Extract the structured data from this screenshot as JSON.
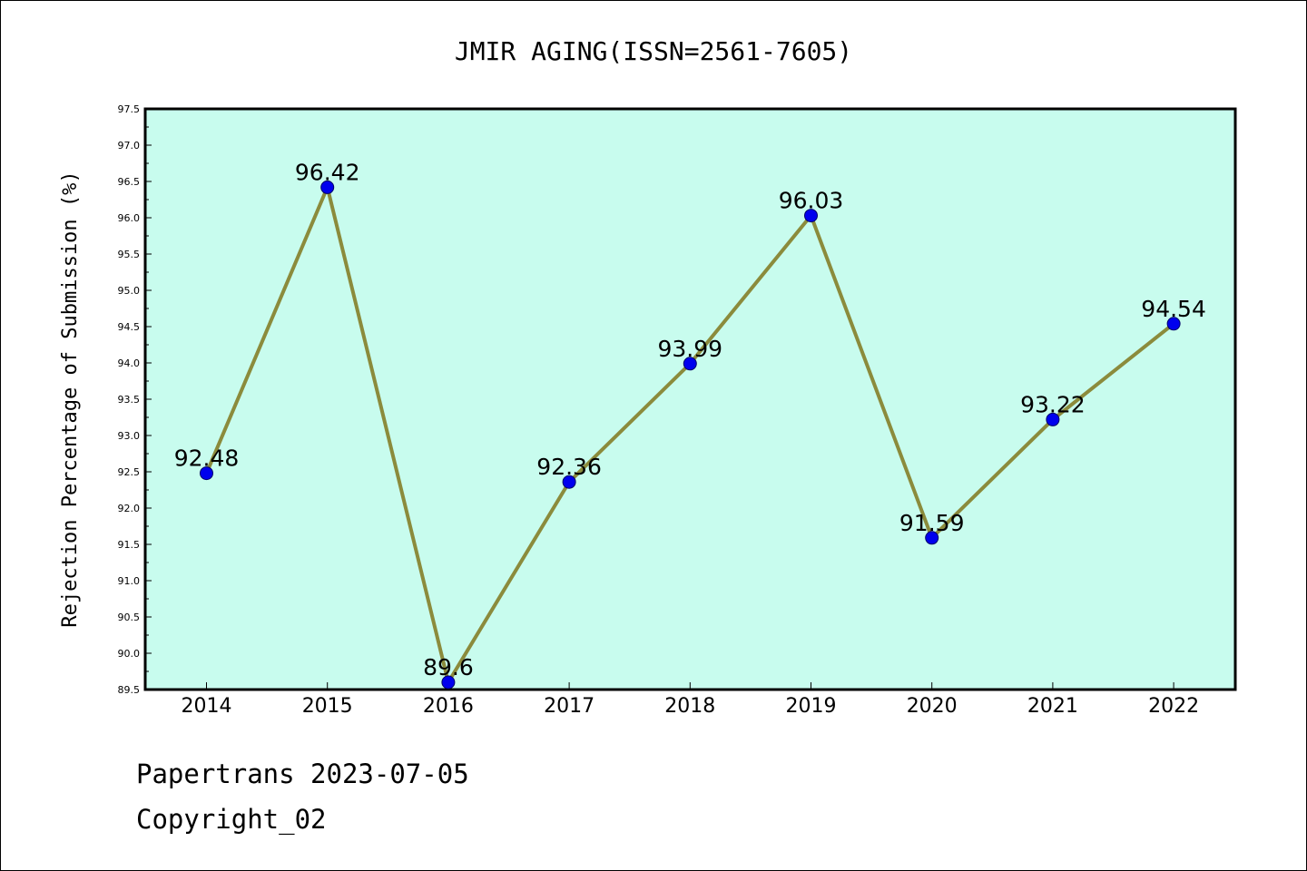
{
  "chart_data": {
    "type": "line",
    "title": "JMIR AGING(ISSN=2561-7605)",
    "ylabel": "Rejection Percentage of Submission (%)",
    "xlabel": "",
    "categories": [
      "2014",
      "2015",
      "2016",
      "2017",
      "2018",
      "2019",
      "2020",
      "2021",
      "2022"
    ],
    "values": [
      92.48,
      96.42,
      89.6,
      92.36,
      93.99,
      96.03,
      91.59,
      93.22,
      94.54
    ],
    "data_labels": [
      "92.48",
      "96.42",
      "89.6",
      "92.36",
      "93.99",
      "96.03",
      "91.59",
      "93.22",
      "94.54"
    ],
    "ylim": [
      89.5,
      97.5
    ],
    "yticks": [
      "89.5",
      "90.0",
      "90.5",
      "91.0",
      "91.5",
      "92.0",
      "92.5",
      "93.0",
      "93.5",
      "94.0",
      "94.5",
      "95.0",
      "95.5",
      "96.0",
      "96.5",
      "97.0",
      "97.5"
    ],
    "grid": false,
    "colors": {
      "plot_background": "#c8fcee",
      "line": "#8b8b3c",
      "marker": "#0000ee"
    }
  },
  "footer": {
    "line1": "Papertrans 2023-07-05",
    "line2": "Copyright_02"
  }
}
